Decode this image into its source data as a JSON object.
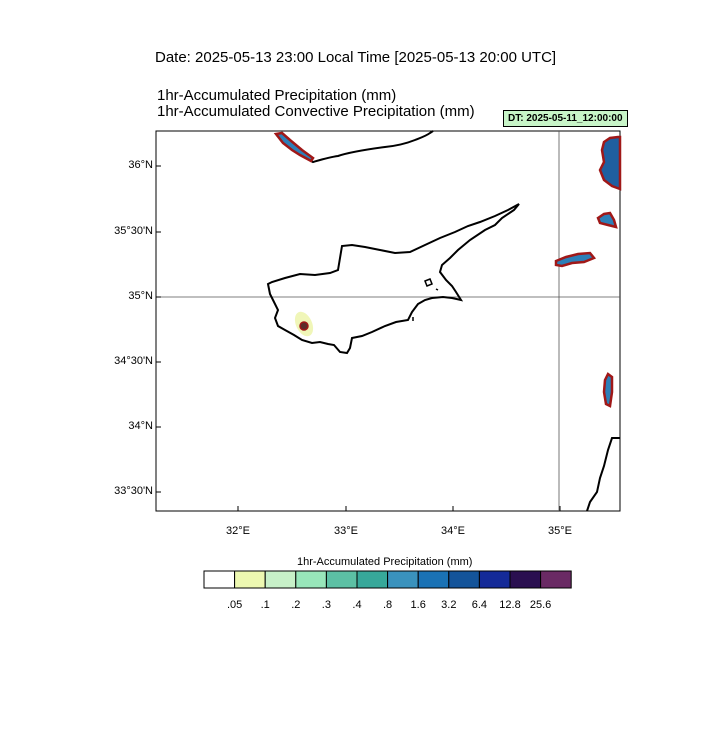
{
  "header": {
    "date_line": "Date: 2025-05-13  23:00 Local Time [2025-05-13  20:00 UTC]",
    "title_1": "1hr-Accumulated Precipitation   (mm)",
    "title_2": "1hr-Accumulated Convective Precipitation   (mm)",
    "dt_badge": "DT: 2025-05-11_12:00:00"
  },
  "map": {
    "lat_labels": [
      "36°N",
      "35°30'N",
      "35°N",
      "34°30'N",
      "34°N",
      "33°30'N"
    ],
    "lon_labels": [
      "32°E",
      "33°E",
      "34°E",
      "35°E"
    ],
    "colors": {
      "coastline": "#000000",
      "precip_fill": "#1f5fa0",
      "convective_outline": "#a01818",
      "light_precip": "#eef5b0"
    }
  },
  "colorbar": {
    "title": "1hr-Accumulated Precipitation  (mm)",
    "colors": [
      "#ffffff",
      "#edf8b1",
      "#c7f0c8",
      "#98e6ba",
      "#5cc0a4",
      "#37a89a",
      "#3a92bd",
      "#1a72b5",
      "#14549a",
      "#142a98",
      "#2a0f50",
      "#6a2a64"
    ],
    "labels": [
      ".05",
      ".1",
      ".2",
      ".3",
      ".4",
      ".8",
      "1.6",
      "3.2",
      "6.4",
      "12.8",
      "25.6"
    ]
  }
}
